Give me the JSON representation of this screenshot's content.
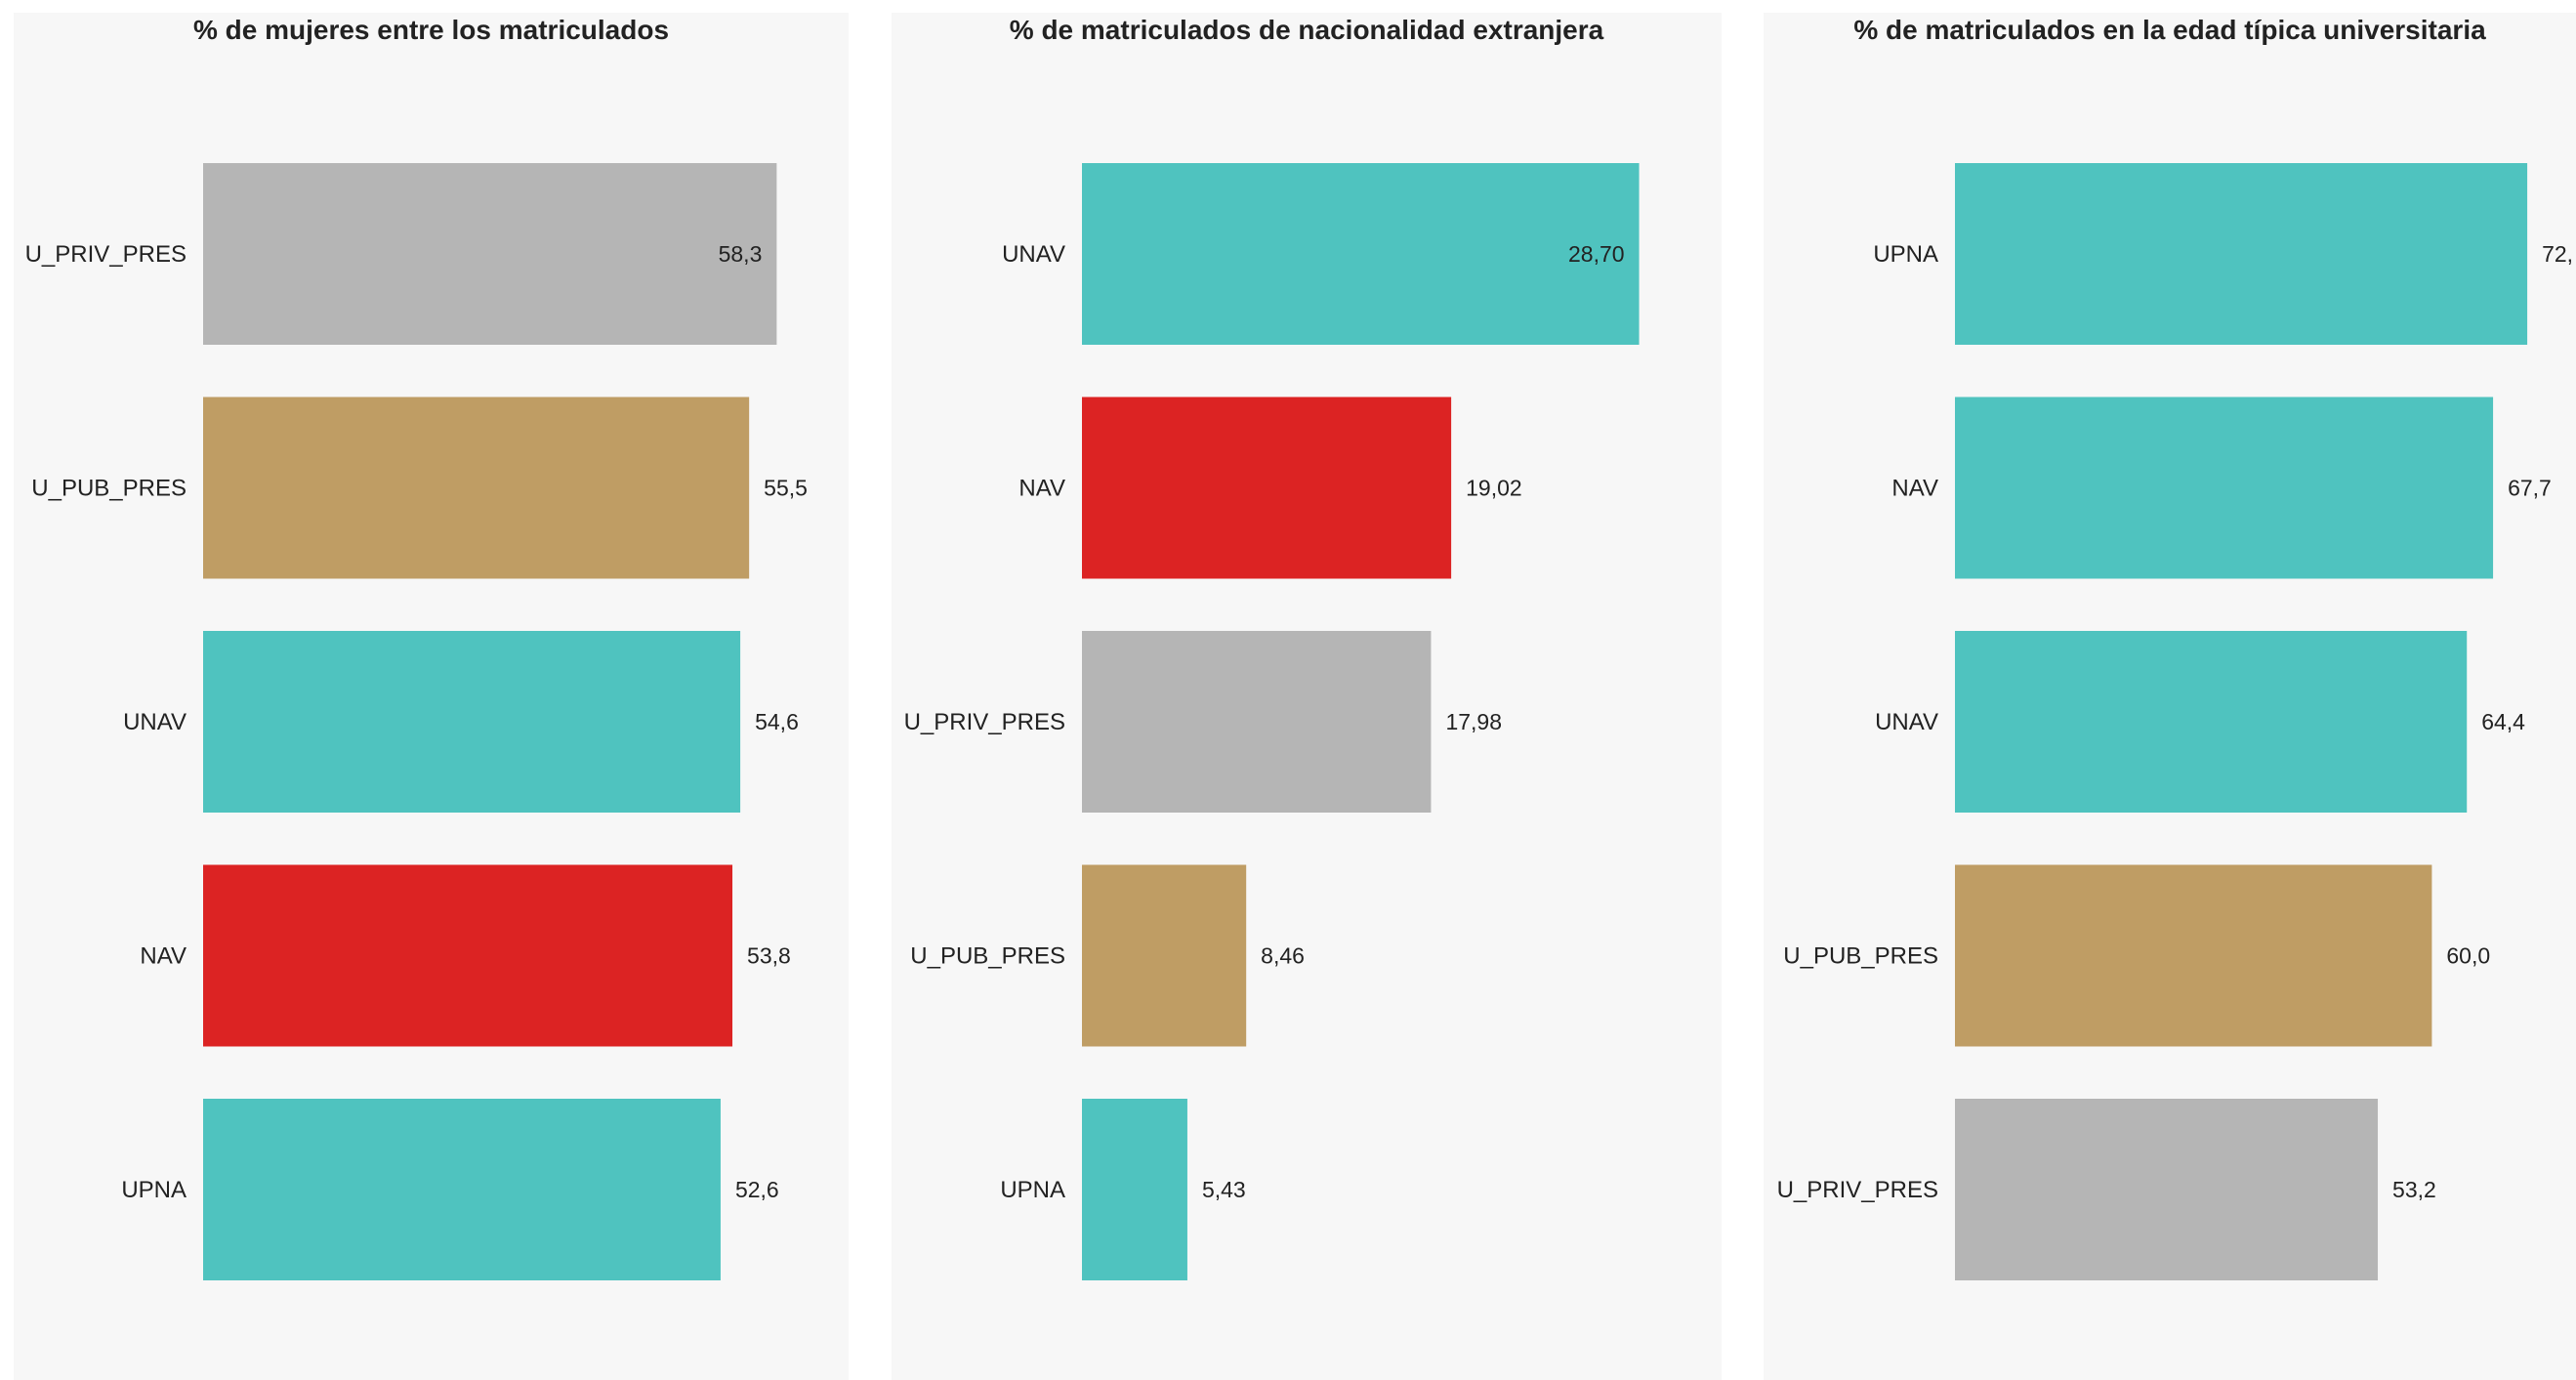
{
  "chart_data": [
    {
      "type": "bar",
      "orientation": "horizontal",
      "title": "% de mujeres entre los matriculados",
      "categories": [
        "U_PRIV_PRES",
        "U_PUB_PRES",
        "UNAV",
        "NAV",
        "UPNA"
      ],
      "values": [
        58.3,
        55.5,
        54.6,
        53.8,
        52.6
      ],
      "value_labels": [
        "58,3",
        "55,5",
        "54,6",
        "53,8",
        "52,6"
      ],
      "colors": [
        "#b5b5b5",
        "#bf9d64",
        "#4fc3bf",
        "#dc2323",
        "#4fc3bf"
      ],
      "xlim": [
        0,
        60
      ],
      "grid": false
    },
    {
      "type": "bar",
      "orientation": "horizontal",
      "title": "% de matriculados de nacionalidad extranjera",
      "categories": [
        "UNAV",
        "NAV",
        "U_PRIV_PRES",
        "U_PUB_PRES",
        "UPNA"
      ],
      "values": [
        28.7,
        19.02,
        17.98,
        8.46,
        5.43
      ],
      "value_labels": [
        "28,70",
        "19,02",
        "17,98",
        "8,46",
        "5,43"
      ],
      "colors": [
        "#4fc3bf",
        "#dc2323",
        "#b5b5b5",
        "#bf9d64",
        "#4fc3bf"
      ],
      "xlim": [
        0,
        30
      ],
      "grid": false
    },
    {
      "type": "bar",
      "orientation": "horizontal",
      "title": "% de matriculados en la edad típica universitaria",
      "categories": [
        "UPNA",
        "NAV",
        "UNAV",
        "U_PUB_PRES",
        "U_PRIV_PRES"
      ],
      "values": [
        72.0,
        67.7,
        64.4,
        60.0,
        53.2
      ],
      "value_labels": [
        "72,",
        "67,7",
        "64,4",
        "60,0",
        "53,2"
      ],
      "colors": [
        "#4fc3bf",
        "#4fc3bf",
        "#4fc3bf",
        "#bf9d64",
        "#b5b5b5"
      ],
      "xlim": [
        0,
        74
      ],
      "grid": false
    }
  ]
}
